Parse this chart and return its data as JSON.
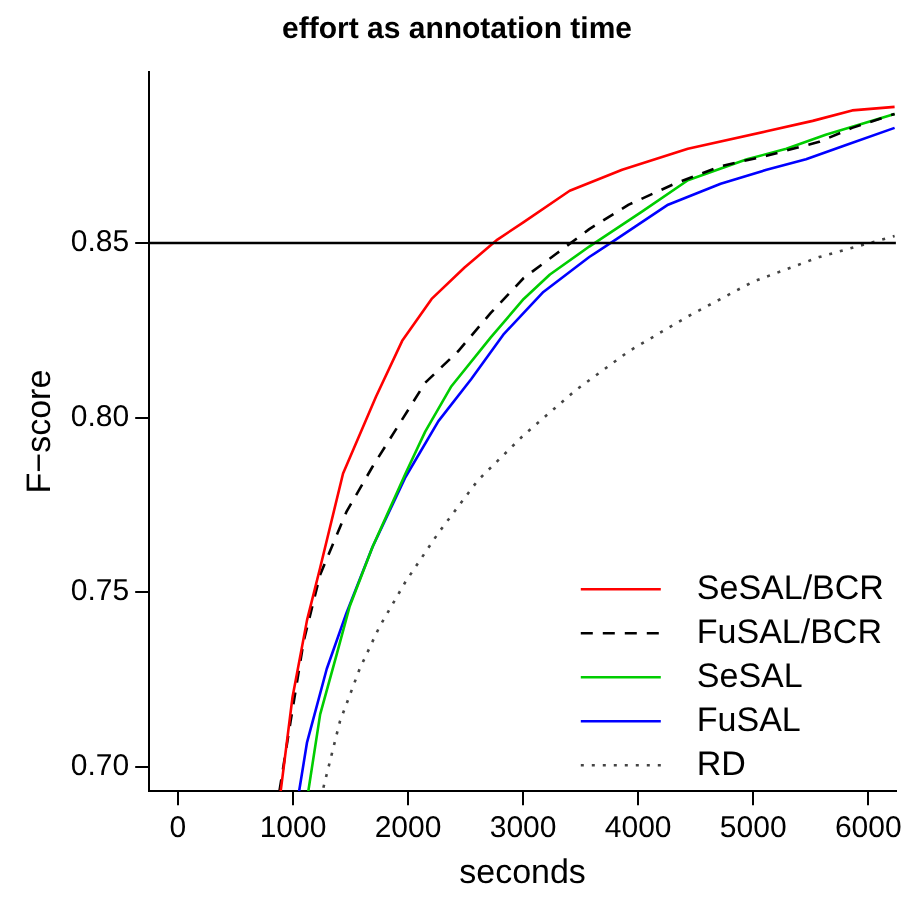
{
  "chart_data": {
    "type": "line",
    "title": "effort as annotation time",
    "xlabel": "seconds",
    "ylabel": "F−score",
    "xlim": [
      -250,
      6240
    ],
    "xticks": [
      0,
      1000,
      2000,
      3000,
      4000,
      5000,
      6000
    ],
    "ylim": [
      0.693,
      0.899
    ],
    "yticks": [
      {
        "value": 0.7,
        "label": "0.70"
      },
      0.75,
      {
        "value": 0.8,
        "label": "0.80"
      },
      0.85
    ],
    "grid": false,
    "legend": "bottom right",
    "marker": "none",
    "ref_lines": [
      {
        "axis": "y",
        "value": 0.85,
        "color": "#000000",
        "line_style": "solid"
      }
    ],
    "series": [
      {
        "name": "SeSAL/BCR",
        "color": "#ff0000",
        "line_style": "solid",
        "x": [
          893,
          996,
          1122,
          1236,
          1435,
          1721,
          1949,
          2205,
          2491,
          2777,
          3005,
          3405,
          3861,
          4432,
          5116,
          5517,
          5860,
          6229
        ],
        "values": [
          0.693,
          0.72,
          0.742,
          0.757,
          0.784,
          0.806,
          0.822,
          0.834,
          0.843,
          0.851,
          0.856,
          0.865,
          0.871,
          0.877,
          0.882,
          0.885,
          0.888,
          0.889
        ]
      },
      {
        "name": "FuSAL/BCR",
        "color": "#000000",
        "line_style": "dashed",
        "x": [
          882,
          979,
          1093,
          1236,
          1464,
          1692,
          1921,
          2149,
          2435,
          2719,
          3005,
          3291,
          3575,
          3918,
          4318,
          4717,
          5116,
          5574,
          5860,
          6229
        ],
        "values": [
          0.693,
          0.713,
          0.736,
          0.755,
          0.773,
          0.786,
          0.798,
          0.81,
          0.819,
          0.83,
          0.84,
          0.847,
          0.854,
          0.861,
          0.867,
          0.872,
          0.875,
          0.879,
          0.883,
          0.887
        ]
      },
      {
        "name": "SeSAL",
        "color": "#00cd00",
        "line_style": "solid",
        "x": [
          1133,
          1236,
          1378,
          1493,
          1692,
          1978,
          2149,
          2377,
          2719,
          3005,
          3233,
          3575,
          4033,
          4432,
          4945,
          5288,
          5630,
          6229
        ],
        "values": [
          0.693,
          0.715,
          0.732,
          0.746,
          0.763,
          0.784,
          0.796,
          0.809,
          0.823,
          0.834,
          0.841,
          0.849,
          0.859,
          0.868,
          0.874,
          0.877,
          0.881,
          0.887
        ]
      },
      {
        "name": "FuSAL",
        "color": "#0000ff",
        "line_style": "solid",
        "x": [
          1053,
          1122,
          1293,
          1464,
          1692,
          1978,
          2264,
          2548,
          2834,
          3176,
          3575,
          3805,
          4260,
          4717,
          5116,
          5459,
          5801,
          6229
        ],
        "values": [
          0.693,
          0.707,
          0.728,
          0.744,
          0.763,
          0.783,
          0.799,
          0.811,
          0.824,
          0.836,
          0.846,
          0.851,
          0.861,
          0.867,
          0.871,
          0.874,
          0.878,
          0.883
        ]
      },
      {
        "name": "RD",
        "color": "#444444",
        "line_style": "dotted",
        "x": [
          1264,
          1408,
          1579,
          1750,
          1978,
          2264,
          2606,
          3005,
          3462,
          3918,
          4432,
          5003,
          5574,
          6229
        ],
        "values": [
          0.694,
          0.713,
          0.728,
          0.74,
          0.753,
          0.767,
          0.782,
          0.795,
          0.808,
          0.819,
          0.829,
          0.839,
          0.846,
          0.852
        ]
      }
    ]
  }
}
